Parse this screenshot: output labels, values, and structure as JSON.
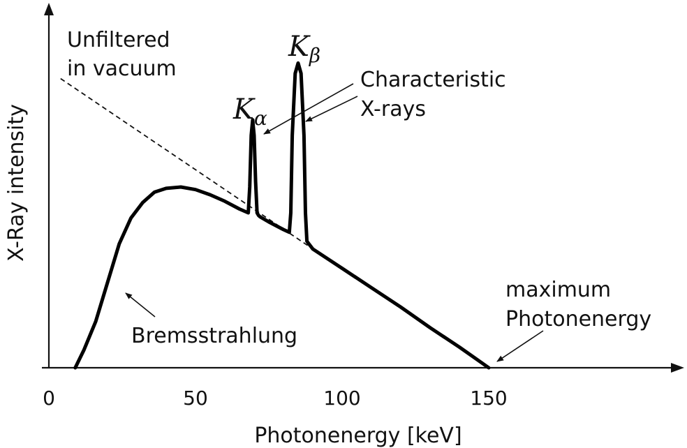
{
  "chart_data": {
    "type": "line",
    "title": "",
    "xlabel": "Photonenergy [keV]",
    "ylabel": "X-Ray intensity",
    "xlim": [
      0,
      150
    ],
    "x_ticks": [
      "0",
      "50",
      "100",
      "150"
    ],
    "grid": false,
    "legend": "none",
    "colors": {
      "curve": "#000000",
      "dashed": "#000000",
      "axis": "#111111"
    },
    "series": [
      {
        "style": "solid",
        "x": [
          9,
          12,
          16,
          20,
          24,
          28,
          32,
          36,
          40,
          45,
          50,
          55,
          60,
          65,
          68,
          68.5,
          69,
          69.5,
          70,
          70.5,
          71,
          71.5,
          72,
          75,
          80,
          82,
          82.5,
          83,
          84,
          85,
          86,
          87,
          87.5,
          88,
          90,
          100,
          110,
          120,
          130,
          140,
          150
        ],
        "y": [
          0,
          0.07,
          0.18,
          0.33,
          0.48,
          0.58,
          0.64,
          0.68,
          0.695,
          0.7,
          0.69,
          0.67,
          0.645,
          0.615,
          0.6,
          0.7,
          0.9,
          0.96,
          0.9,
          0.72,
          0.6,
          0.59,
          0.585,
          0.565,
          0.535,
          0.525,
          0.6,
          0.9,
          1.14,
          1.18,
          1.14,
          0.9,
          0.6,
          0.49,
          0.46,
          0.385,
          0.31,
          0.235,
          0.155,
          0.08,
          0
        ]
      },
      {
        "style": "dashed",
        "x": [
          4,
          150
        ],
        "y": [
          1.12,
          0
        ]
      }
    ],
    "annotations": [
      {
        "text_lines": [
          "Unfiltered",
          "in vacuum"
        ]
      },
      {
        "text_lines": [
          "Characteristic",
          "X-rays"
        ]
      },
      {
        "text_lines": [
          "Bremsstrahlung"
        ]
      },
      {
        "text_lines": [
          "maximum",
          "Photonenergy"
        ]
      }
    ],
    "peaks": [
      {
        "base": "K",
        "sub": "α",
        "x": 69.5
      },
      {
        "base": "K",
        "sub": "β",
        "x": 85
      }
    ]
  }
}
